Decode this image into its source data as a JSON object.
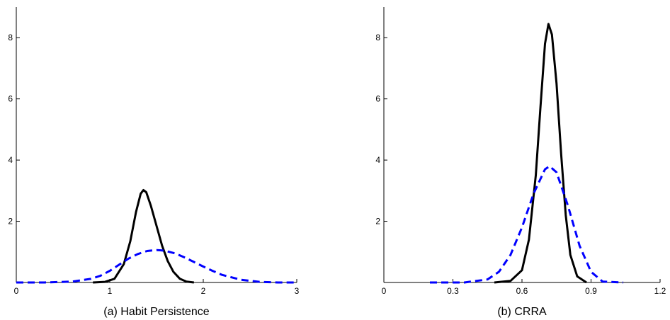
{
  "chart_data": [
    {
      "type": "line",
      "caption": "(a) Habit Persistence",
      "xlim": [
        0,
        3
      ],
      "ylim": [
        0,
        9
      ],
      "xticks": [
        0,
        1,
        2,
        3
      ],
      "xtick_labels": [
        "0",
        "1",
        "2",
        "3"
      ],
      "yticks": [
        2,
        4,
        6,
        8
      ],
      "ytick_labels": [
        "2",
        "4",
        "6",
        "8"
      ],
      "grid": false,
      "series": [
        {
          "style": "solid",
          "color": "#000000",
          "x": [
            0.82,
            0.95,
            1.05,
            1.15,
            1.22,
            1.28,
            1.33,
            1.36,
            1.39,
            1.44,
            1.5,
            1.56,
            1.62,
            1.68,
            1.75,
            1.82,
            1.9
          ],
          "y": [
            0.0,
            0.02,
            0.12,
            0.6,
            1.35,
            2.3,
            2.9,
            3.02,
            2.95,
            2.5,
            1.85,
            1.2,
            0.7,
            0.35,
            0.12,
            0.03,
            0.0
          ]
        },
        {
          "style": "dashed",
          "color": "#0000ff",
          "x": [
            0.0,
            0.3,
            0.6,
            0.8,
            0.9,
            1.0,
            1.1,
            1.2,
            1.3,
            1.4,
            1.5,
            1.55,
            1.6,
            1.7,
            1.8,
            1.9,
            2.0,
            2.1,
            2.2,
            2.4,
            2.6,
            2.8,
            3.0
          ],
          "y": [
            0.0,
            0.0,
            0.03,
            0.12,
            0.22,
            0.38,
            0.58,
            0.78,
            0.93,
            1.03,
            1.06,
            1.05,
            1.03,
            0.95,
            0.82,
            0.67,
            0.52,
            0.38,
            0.25,
            0.09,
            0.02,
            0.0,
            0.0
          ]
        }
      ]
    },
    {
      "type": "line",
      "caption": "(b) CRRA",
      "xlim": [
        0,
        1.2
      ],
      "ylim": [
        0,
        9
      ],
      "xticks": [
        0,
        0.3,
        0.6,
        0.9,
        1.2
      ],
      "xtick_labels": [
        "0",
        "0.3",
        "0.6",
        "0.9",
        "1.2"
      ],
      "yticks": [
        2,
        4,
        6,
        8
      ],
      "ytick_labels": [
        "2",
        "4",
        "6",
        "8"
      ],
      "grid": false,
      "series": [
        {
          "style": "solid",
          "color": "#000000",
          "x": [
            0.48,
            0.55,
            0.6,
            0.63,
            0.66,
            0.68,
            0.7,
            0.715,
            0.73,
            0.75,
            0.77,
            0.79,
            0.81,
            0.84,
            0.88
          ],
          "y": [
            0.0,
            0.05,
            0.4,
            1.4,
            3.5,
            5.7,
            7.8,
            8.45,
            8.1,
            6.5,
            4.2,
            2.2,
            0.9,
            0.2,
            0.0
          ]
        },
        {
          "style": "dashed",
          "color": "#0000ff",
          "x": [
            0.2,
            0.35,
            0.45,
            0.5,
            0.55,
            0.6,
            0.65,
            0.7,
            0.72,
            0.75,
            0.8,
            0.85,
            0.9,
            0.95,
            1.04
          ],
          "y": [
            0.0,
            0.0,
            0.1,
            0.35,
            0.9,
            1.8,
            2.9,
            3.7,
            3.8,
            3.6,
            2.5,
            1.2,
            0.35,
            0.03,
            0.0
          ]
        }
      ]
    }
  ]
}
